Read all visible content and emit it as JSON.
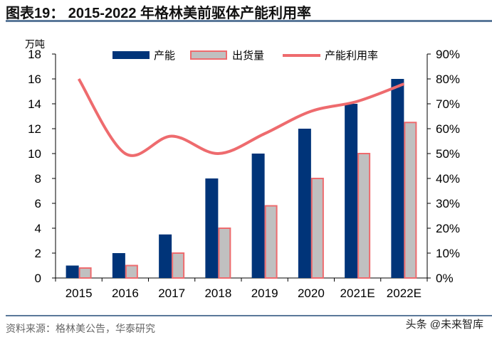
{
  "title": "图表19：  2015-2022 年格林美前驱体产能利用率",
  "source": "资料来源：格林美公告，华泰研究",
  "watermark": "头条 @未来智库",
  "chart_data": {
    "type": "bar+line",
    "categories": [
      "2015",
      "2016",
      "2017",
      "2018",
      "2019",
      "2020",
      "2021E",
      "2022E"
    ],
    "y_left_unit": "万吨",
    "ylim_left": [
      0,
      18
    ],
    "yticks_left": [
      "0",
      "2",
      "4",
      "6",
      "8",
      "10",
      "12",
      "14",
      "16",
      "18"
    ],
    "ylim_right": [
      0,
      90
    ],
    "yticks_right": [
      "0%",
      "10%",
      "20%",
      "30%",
      "40%",
      "50%",
      "60%",
      "70%",
      "80%",
      "90%"
    ],
    "legend_position": "top",
    "grid": false,
    "series": [
      {
        "name": "产能",
        "type": "bar",
        "axis": "left",
        "color": "#003479",
        "values": [
          1,
          2,
          3.5,
          8,
          10,
          12,
          14,
          16
        ]
      },
      {
        "name": "出货量",
        "type": "bar",
        "axis": "left",
        "color": "#c0c0c0",
        "edge": "#ee6b6e",
        "values": [
          0.8,
          1,
          2,
          4,
          5.8,
          8,
          10,
          12.5
        ]
      },
      {
        "name": "产能利用率",
        "type": "line",
        "axis": "right",
        "color": "#ee6b6e",
        "values": [
          80,
          50,
          57,
          50,
          58,
          67,
          71,
          78
        ]
      }
    ]
  }
}
